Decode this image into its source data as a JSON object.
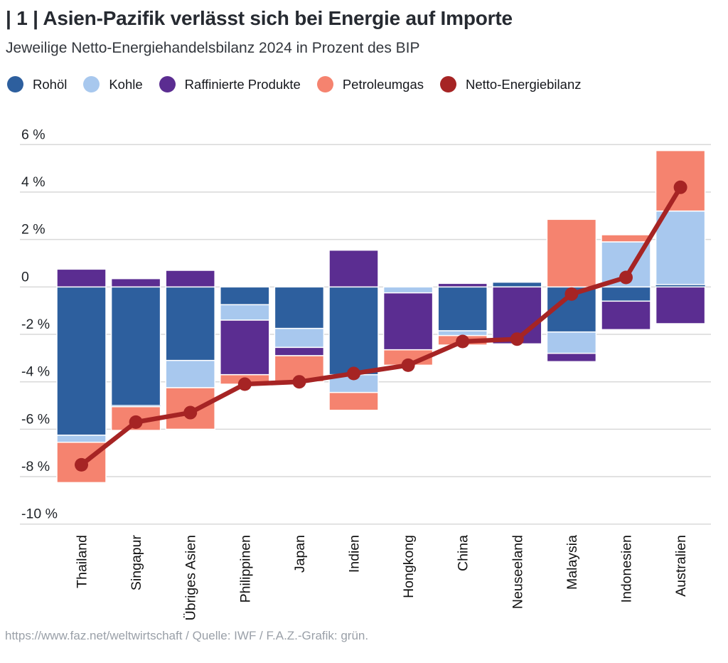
{
  "header": {
    "title": "| 1 | Asien-Pazifik verlässt sich bei Energie auf Importe",
    "subtitle": "Jeweilige Netto-Energiehandelsbilanz 2024 in Prozent des BIP"
  },
  "legend": [
    {
      "key": "rohoel",
      "label": "Rohöl"
    },
    {
      "key": "kohle",
      "label": "Kohle"
    },
    {
      "key": "raffinierte",
      "label": "Raffinierte Produkte"
    },
    {
      "key": "petroleumgas",
      "label": "Petroleumgas"
    },
    {
      "key": "netto",
      "label": "Netto-Energiebilanz"
    }
  ],
  "colors": {
    "rohoel": "#2d5f9e",
    "kohle": "#a8c8ee",
    "raffinierte": "#5b2d91",
    "petroleumgas": "#f5836f",
    "netto": "#a62424",
    "grid": "#d9d9d9",
    "title": "#262a31",
    "subtitle": "#33373d",
    "tick": "#1f2328",
    "xlabel": "#111111",
    "footer": "#9aa0a8",
    "segment_border": "#ffffff"
  },
  "chart_data": {
    "type": "bar",
    "stacked": true,
    "title": "Asien-Pazifik verlässt sich bei Energie auf Importe",
    "subtitle": "Jeweilige Netto-Energiehandelsbilanz 2024 in Prozent des BIP",
    "xlabel": "",
    "ylabel": "Prozent des BIP",
    "grid": true,
    "legend_position": "top",
    "ylim": [
      -10.1,
      6
    ],
    "categories": [
      "Thailand",
      "Singapur",
      "Übriges Asien",
      "Philippinen",
      "Japan",
      "Indien",
      "Hongkong",
      "China",
      "Neuseeland",
      "Malaysia",
      "Indonesien",
      "Australien"
    ],
    "series": [
      {
        "name": "Rohöl",
        "key": "rohoel",
        "values": [
          -6.25,
          -5.0,
          -3.1,
          -0.75,
          -1.75,
          -3.7,
          0,
          -1.85,
          0.2,
          -1.9,
          -0.6,
          0.1
        ]
      },
      {
        "name": "Kohle",
        "key": "kohle",
        "values": [
          -0.3,
          -0.05,
          -1.15,
          -0.65,
          -0.8,
          -0.75,
          -0.25,
          -0.2,
          0,
          -0.9,
          1.9,
          3.1
        ]
      },
      {
        "name": "Raffinierte Produkte",
        "key": "raffinierte",
        "values": [
          0.75,
          0.35,
          0.7,
          -2.3,
          -0.35,
          1.55,
          -2.4,
          0.15,
          -2.4,
          -0.35,
          -1.2,
          -1.55
        ]
      },
      {
        "name": "Petroleumgas",
        "key": "petroleumgas",
        "values": [
          -1.7,
          -1.0,
          -1.75,
          -0.4,
          -1.1,
          -0.75,
          -0.65,
          -0.4,
          0,
          2.85,
          0.3,
          2.55
        ]
      }
    ],
    "line_series": {
      "name": "Netto-Energiebilanz",
      "key": "netto",
      "values": [
        -7.5,
        -5.7,
        -5.3,
        -4.1,
        -4.0,
        -3.65,
        -3.3,
        -2.3,
        -2.2,
        -0.3,
        0.4,
        4.2
      ]
    },
    "y_ticks": {
      "values": [
        6,
        4,
        2,
        0,
        -2,
        -4,
        -6,
        -8,
        -10
      ],
      "labels": [
        "6 %",
        "4 %",
        "2 %",
        "0",
        "-2 %",
        "-4 %",
        "-6 %",
        "-8 %",
        "-10 %"
      ]
    }
  },
  "footer": {
    "text": "https://www.faz.net/weltwirtschaft / Quelle: IWF / F.A.Z.-Grafik: grün."
  }
}
